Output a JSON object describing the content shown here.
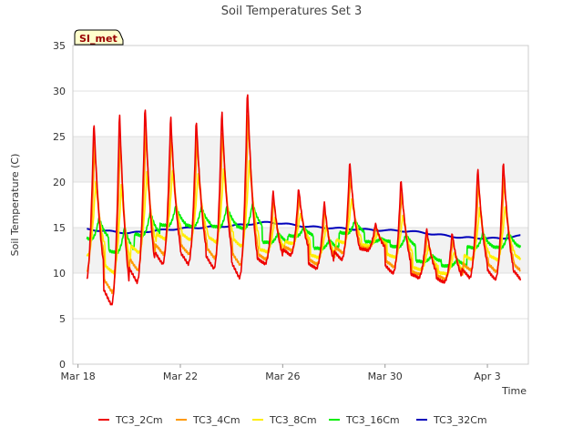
{
  "chart_data": {
    "type": "line",
    "title": "Soil Temperatures Set 3",
    "xlabel": "Time",
    "ylabel": "Soil Temperature (C)",
    "badge": "SI_met",
    "grid": true,
    "legend_position": "bottom",
    "xlim": [
      -0.2,
      17.6
    ],
    "ylim": [
      0,
      35
    ],
    "x_unit": "days from Mar 18",
    "y_ticks": [
      0,
      5,
      10,
      15,
      20,
      25,
      30,
      35
    ],
    "x_ticks": [
      {
        "value": 0,
        "label": "Mar 18"
      },
      {
        "value": 4,
        "label": "Mar 22"
      },
      {
        "value": 8,
        "label": "Mar 26"
      },
      {
        "value": 12,
        "label": "Mar 30"
      },
      {
        "value": 16,
        "label": "Apr 3"
      }
    ],
    "daily_peaks_2cm": [
      27.0,
      28.0,
      28.8,
      27.6,
      27.2,
      28.2,
      30.5,
      19.2,
      19.5,
      18.0,
      22.5,
      15.5,
      20.5,
      15.0,
      14.5,
      21.8,
      22.5
    ],
    "daily_lows_2cm": [
      9.0,
      6.5,
      9.0,
      11.0,
      11.0,
      10.5,
      9.5,
      11.0,
      12.0,
      10.5,
      11.5,
      12.5,
      10.0,
      9.5,
      9.0,
      9.5,
      9.3
    ],
    "series": [
      {
        "name": "TC3_2Cm",
        "color": "#ee0000"
      },
      {
        "name": "TC3_4Cm",
        "color": "#ff9900"
      },
      {
        "name": "TC3_8Cm",
        "color": "#ffee00"
      },
      {
        "name": "TC3_16Cm",
        "color": "#00ee00"
      },
      {
        "name": "TC3_32Cm",
        "color": "#0000bb"
      }
    ],
    "trend_32cm": {
      "x": [
        0,
        2,
        4,
        6,
        7.5,
        9,
        11,
        13,
        15,
        16.5,
        17.3
      ],
      "y": [
        14.9,
        14.4,
        14.9,
        15.2,
        15.6,
        15.1,
        14.8,
        14.6,
        13.9,
        13.8,
        14.1
      ]
    }
  }
}
